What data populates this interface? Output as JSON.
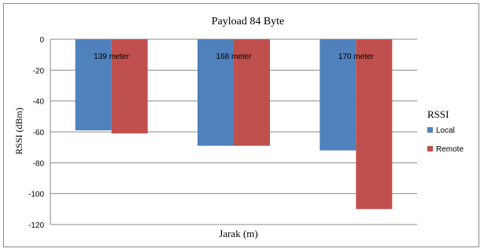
{
  "chart_data": {
    "type": "bar",
    "title": "Payload  84 Byte",
    "xlabel": "Jarak (m)",
    "ylabel": "RSSI  (dBm)",
    "categories": [
      "139 meter",
      "168 meter",
      "170 meter"
    ],
    "series": [
      {
        "name": "Local",
        "values": [
          -59,
          -69,
          -72
        ],
        "color": "#4f81bd"
      },
      {
        "name": "Remote",
        "values": [
          -61,
          -69,
          -110
        ],
        "color": "#c0504d"
      }
    ],
    "ylim": [
      -120,
      0
    ],
    "yticks": [
      0,
      -20,
      -40,
      -60,
      -80,
      -100,
      -120
    ],
    "grid": true,
    "legend": {
      "title": "RSSI",
      "position": "right"
    }
  }
}
